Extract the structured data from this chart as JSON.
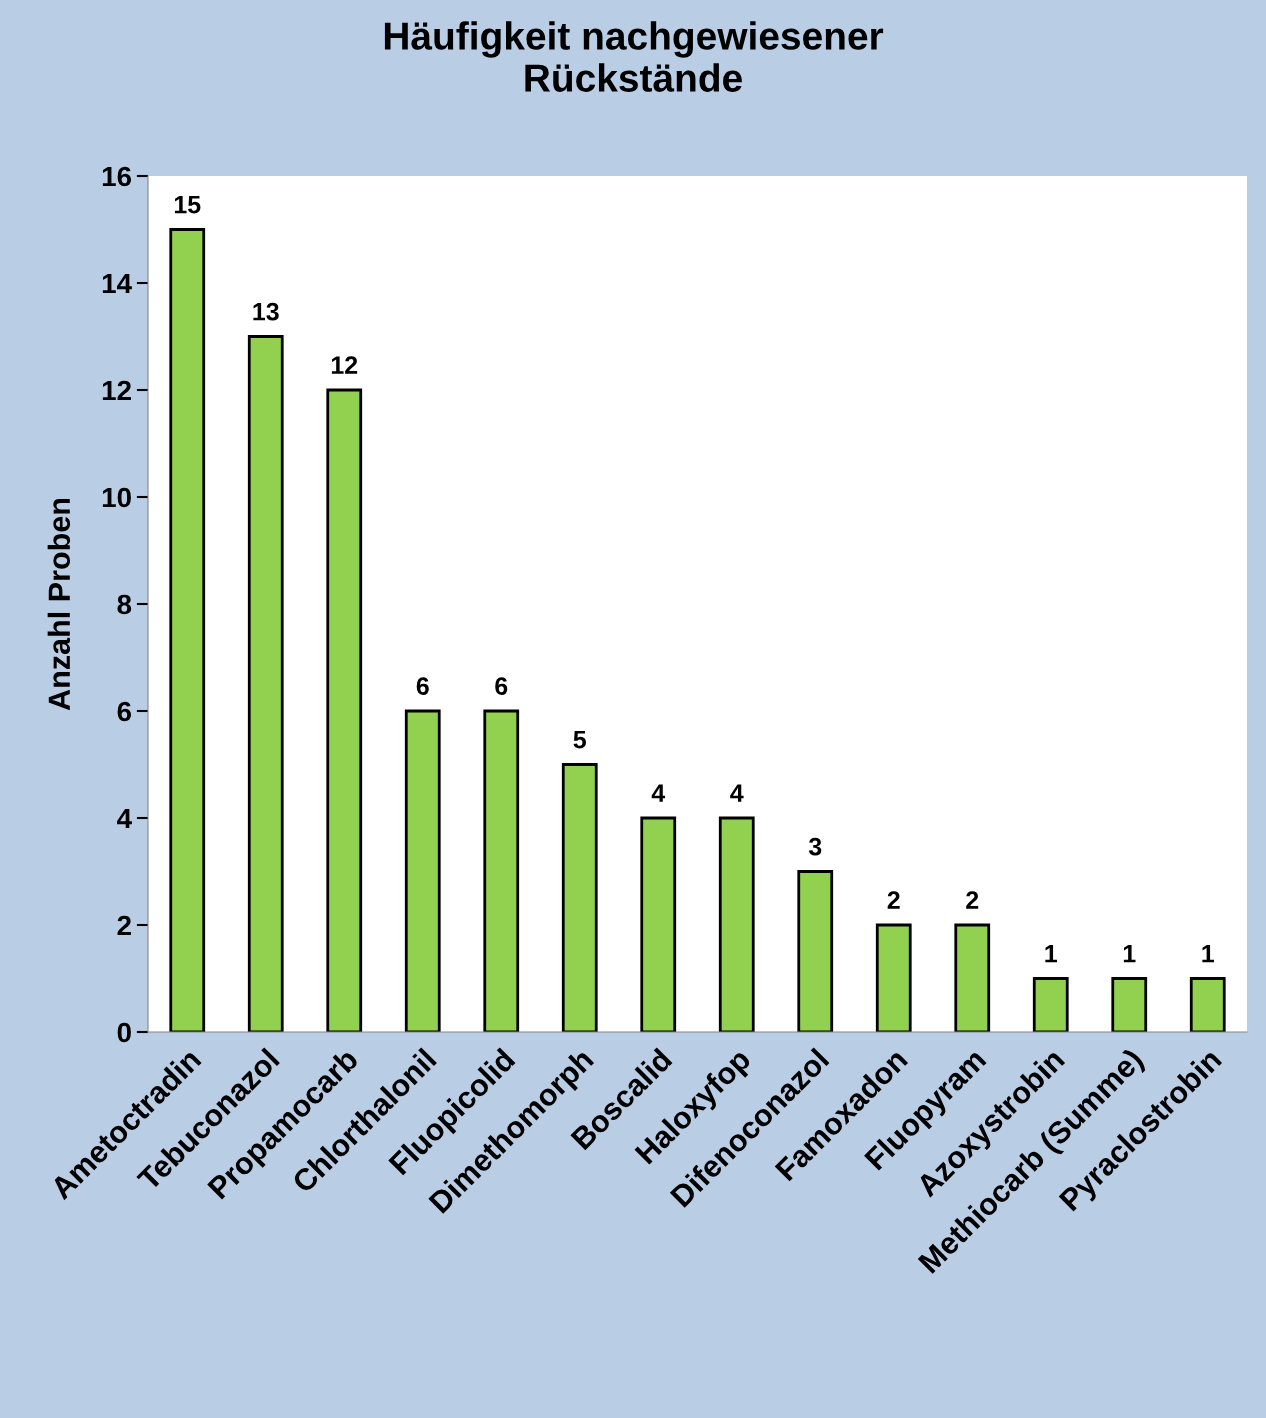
{
  "chart_data": {
    "type": "bar",
    "title": "Häufigkeit nachgewiesener\nRückstände",
    "ylabel": "Anzahl Proben",
    "categories": [
      "Ametoctradin",
      "Tebuconazol",
      "Propamocarb",
      "Chlorthalonil",
      "Fluopicolid",
      "Dimethomorph",
      "Boscalid",
      "Haloxyfop",
      "Difenoconazol",
      "Famoxadon",
      "Fluopyram",
      "Azoxystrobin",
      "Methiocarb (Summe)",
      "Pyraclostrobin"
    ],
    "values": [
      15,
      13,
      12,
      6,
      6,
      5,
      4,
      4,
      3,
      2,
      2,
      1,
      1,
      1
    ],
    "color": "#92d050",
    "ylim": [
      0,
      16
    ],
    "yticks": [
      0,
      2,
      4,
      6,
      8,
      10,
      12,
      14,
      16
    ],
    "grid": false,
    "data_labels": true
  }
}
